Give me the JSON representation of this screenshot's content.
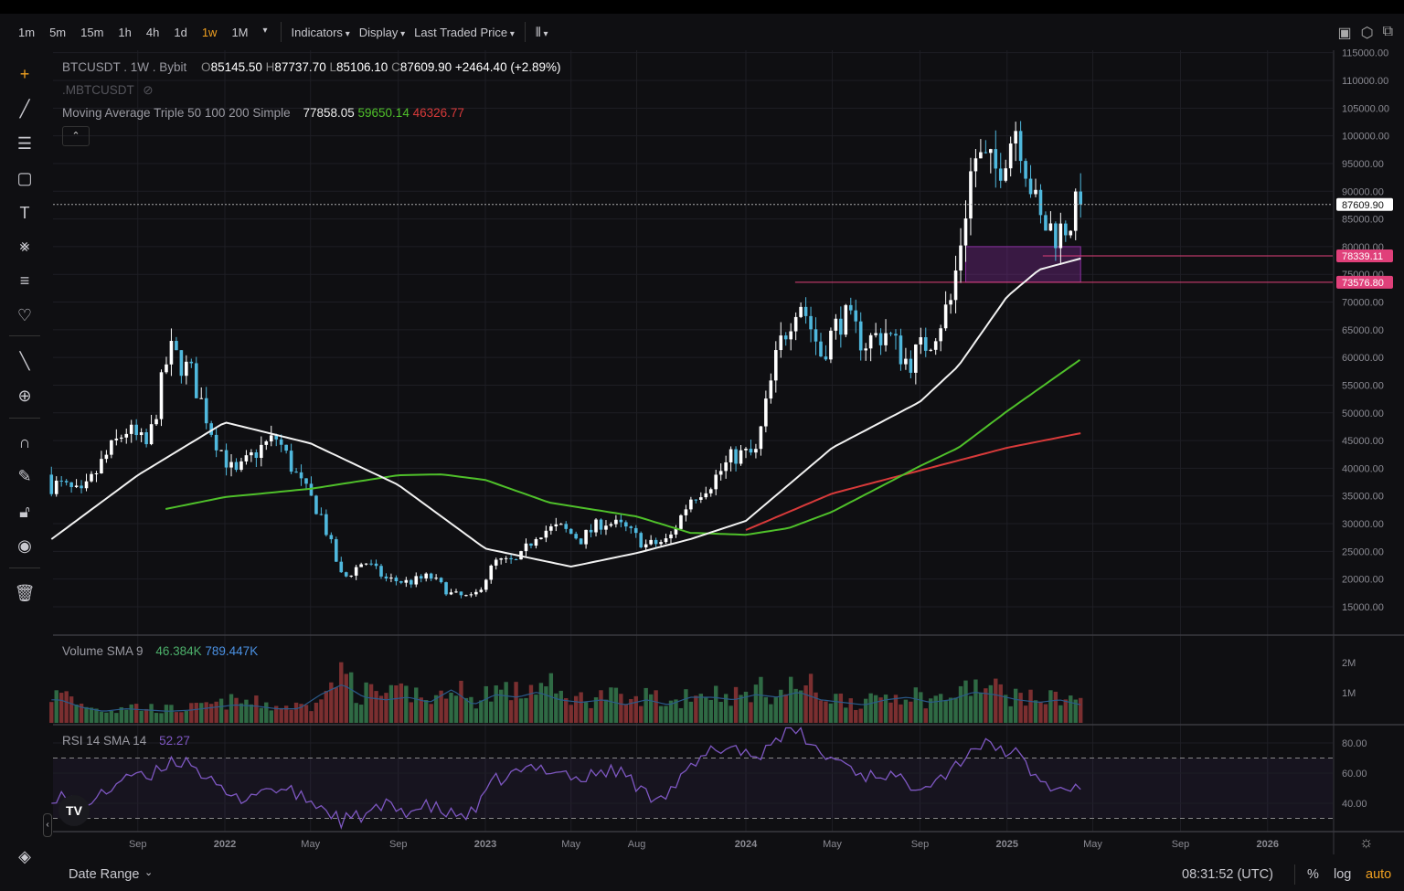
{
  "toolbar": {
    "timeframes": [
      "1m",
      "5m",
      "15m",
      "1h",
      "4h",
      "1d",
      "1w",
      "1M"
    ],
    "active_timeframe": "1w",
    "indicators_label": "Indicators",
    "display_label": "Display",
    "price_source_label": "Last Traded Price",
    "chart_type_icon": "candles-icon",
    "right_icons": [
      "camera-icon",
      "settings-icon",
      "fullscreen-icon"
    ]
  },
  "legend": {
    "symbol": "BTCUSDT . 1W . Bybit",
    "open_prefix": "O",
    "open": "85145.50",
    "high_prefix": "H",
    "high": "87737.70",
    "low_prefix": "L",
    "low": "85106.10",
    "close_prefix": "C",
    "close": "87609.90",
    "change": "+2464.40 (+2.89%)",
    "compare_symbol": ".MBTCUSDT",
    "ma_label": "Moving Average Triple 50 100 200 Simple",
    "ma50": "77858.05",
    "ma100": "59650.14",
    "ma200": "46326.77",
    "volume_label": "Volume SMA 9",
    "volume_value": "46.384K",
    "volume_sma": "789.447K",
    "rsi_label": "RSI 14 SMA 14",
    "rsi_value": "52.27"
  },
  "price_axis": {
    "ticks": [
      "115000.00",
      "110000.00",
      "105000.00",
      "100000.00",
      "95000.00",
      "90000.00",
      "85000.00",
      "80000.00",
      "75000.00",
      "70000.00",
      "65000.00",
      "60000.00",
      "55000.00",
      "50000.00",
      "45000.00",
      "40000.00",
      "35000.00",
      "30000.00",
      "25000.00",
      "20000.00",
      "15000.00"
    ],
    "last_price_label": "87609.90",
    "level_labels": [
      "78339.11",
      "73576.80"
    ]
  },
  "volume_axis": {
    "ticks": [
      "2M",
      "1M"
    ]
  },
  "rsi_axis": {
    "ticks": [
      "80.00",
      "60.00",
      "40.00"
    ]
  },
  "time_axis": {
    "ticks": [
      {
        "label": "Sep",
        "date": "2021-09-01",
        "bold": false
      },
      {
        "label": "2022",
        "date": "2022-01-01",
        "bold": true
      },
      {
        "label": "May",
        "date": "2022-05-01",
        "bold": false
      },
      {
        "label": "Sep",
        "date": "2022-09-01",
        "bold": false
      },
      {
        "label": "2023",
        "date": "2023-01-01",
        "bold": true
      },
      {
        "label": "May",
        "date": "2023-05-01",
        "bold": false
      },
      {
        "label": "Aug",
        "date": "2023-08-01",
        "bold": false
      },
      {
        "label": "2024",
        "date": "2024-01-01",
        "bold": true
      },
      {
        "label": "May",
        "date": "2024-05-01",
        "bold": false
      },
      {
        "label": "Sep",
        "date": "2024-09-01",
        "bold": false
      },
      {
        "label": "2025",
        "date": "2025-01-01",
        "bold": true
      },
      {
        "label": "May",
        "date": "2025-05-01",
        "bold": false
      },
      {
        "label": "Sep",
        "date": "2025-09-01",
        "bold": false
      },
      {
        "label": "2026",
        "date": "2026-01-01",
        "bold": true
      }
    ]
  },
  "bottom": {
    "date_range": "Date Range",
    "clock": "08:31:52 (UTC)",
    "percent": "%",
    "log": "log",
    "auto": "auto"
  },
  "colors": {
    "up": "#ffffff",
    "down": "#4fb8dd",
    "ma50": "#f2f2f2",
    "ma100": "#4fc02a",
    "ma200": "#d83a3a",
    "level": "#e0407a",
    "zone": "#8a2fa0",
    "vol_up": "#2f6a44",
    "vol_down": "#7b2f30",
    "rsi": "#7e57c2",
    "accent": "#f0a020"
  },
  "chart_data": {
    "type": "candlestick",
    "interval": "1W",
    "price_range": [
      15000,
      110000
    ],
    "monthly_close": [
      [
        "2021-05",
        37000
      ],
      [
        "2021-06",
        35000
      ],
      [
        "2021-07",
        41500
      ],
      [
        "2021-08",
        47000
      ],
      [
        "2021-09",
        43800
      ],
      [
        "2021-10",
        61300
      ],
      [
        "2021-11",
        57000
      ],
      [
        "2021-12",
        46300
      ],
      [
        "2022-01",
        38500
      ],
      [
        "2022-02",
        43200
      ],
      [
        "2022-03",
        45500
      ],
      [
        "2022-04",
        37700
      ],
      [
        "2022-05",
        31800
      ],
      [
        "2022-06",
        19900
      ],
      [
        "2022-07",
        23300
      ],
      [
        "2022-08",
        20000
      ],
      [
        "2022-09",
        19400
      ],
      [
        "2022-10",
        20500
      ],
      [
        "2022-11",
        17200
      ],
      [
        "2022-12",
        16500
      ],
      [
        "2023-01",
        23100
      ],
      [
        "2023-02",
        23100
      ],
      [
        "2023-03",
        28500
      ],
      [
        "2023-04",
        29300
      ],
      [
        "2023-05",
        27200
      ],
      [
        "2023-06",
        30500
      ],
      [
        "2023-07",
        29200
      ],
      [
        "2023-08",
        26000
      ],
      [
        "2023-09",
        27000
      ],
      [
        "2023-10",
        34600
      ],
      [
        "2023-11",
        37700
      ],
      [
        "2023-12",
        42300
      ],
      [
        "2024-01",
        42600
      ],
      [
        "2024-02",
        61200
      ],
      [
        "2024-03",
        71300
      ],
      [
        "2024-04",
        60700
      ],
      [
        "2024-05",
        67500
      ],
      [
        "2024-06",
        62700
      ],
      [
        "2024-07",
        64600
      ],
      [
        "2024-08",
        59000
      ],
      [
        "2024-09",
        63300
      ],
      [
        "2024-10",
        70300
      ],
      [
        "2024-11",
        96400
      ],
      [
        "2024-12",
        93400
      ],
      [
        "2025-01",
        102400
      ],
      [
        "2025-02",
        84300
      ],
      [
        "2025-03",
        82500
      ],
      [
        "2025-04",
        87609.9
      ]
    ],
    "ma50": [
      [
        "2021-05-03",
        27200
      ],
      [
        "2021-09-01",
        38750
      ],
      [
        "2022-01-01",
        48300
      ],
      [
        "2022-05-01",
        44500
      ],
      [
        "2022-09-01",
        37000
      ],
      [
        "2023-01-01",
        25500
      ],
      [
        "2023-05-01",
        22250
      ],
      [
        "2023-08-01",
        24700
      ],
      [
        "2023-10-15",
        27200
      ],
      [
        "2024-01-01",
        30500
      ],
      [
        "2024-05-01",
        43700
      ],
      [
        "2024-09-01",
        52000
      ],
      [
        "2024-10-25",
        58500
      ],
      [
        "2025-01-01",
        71000
      ],
      [
        "2025-02-15",
        75850
      ],
      [
        "2025-04-14",
        77858.05
      ]
    ],
    "ma100": [
      [
        "2021-10-10",
        32650
      ],
      [
        "2022-01-01",
        34800
      ],
      [
        "2022-05-01",
        36300
      ],
      [
        "2022-09-01",
        38750
      ],
      [
        "2022-11-01",
        38900
      ],
      [
        "2023-01-01",
        37900
      ],
      [
        "2023-04-01",
        33800
      ],
      [
        "2023-08-01",
        31300
      ],
      [
        "2023-10-15",
        28350
      ],
      [
        "2024-01-01",
        28000
      ],
      [
        "2024-03-01",
        29200
      ],
      [
        "2024-05-01",
        32150
      ],
      [
        "2024-09-01",
        40400
      ],
      [
        "2024-10-25",
        43700
      ],
      [
        "2025-01-01",
        50300
      ],
      [
        "2025-04-14",
        59650.14
      ]
    ],
    "ma200": [
      [
        "2024-01-01",
        28850
      ],
      [
        "2024-05-01",
        35450
      ],
      [
        "2024-09-01",
        39600
      ],
      [
        "2025-01-01",
        43700
      ],
      [
        "2025-04-14",
        46326.77
      ]
    ],
    "levels": [
      78339.11,
      73576.8
    ],
    "zone": {
      "from": "2024-11-04",
      "to": "2025-04-14",
      "top": 80000,
      "bottom": 73576.8
    },
    "monthly_volume_k": [
      900,
      600,
      450,
      550,
      500,
      450,
      500,
      600,
      700,
      650,
      550,
      550,
      1100,
      1500,
      1000,
      900,
      1000,
      800,
      1300,
      700,
      1100,
      1000,
      1200,
      900,
      800,
      900,
      700,
      900,
      700,
      1000,
      1000,
      900,
      1100,
      1000,
      1200,
      900,
      800,
      700,
      900,
      1000,
      800,
      900,
      1200,
      1100,
      900,
      800,
      900,
      700
    ],
    "monthly_rsi": [
      45,
      40,
      45,
      60,
      55,
      68,
      68,
      52,
      42,
      48,
      50,
      45,
      38,
      28,
      32,
      38,
      35,
      38,
      32,
      33,
      55,
      60,
      64,
      62,
      55,
      62,
      60,
      45,
      48,
      62,
      75,
      78,
      70,
      85,
      88,
      72,
      68,
      58,
      60,
      52,
      55,
      62,
      78,
      78,
      72,
      55,
      48,
      52.27
    ],
    "rsi_bands": [
      70,
      30
    ]
  }
}
